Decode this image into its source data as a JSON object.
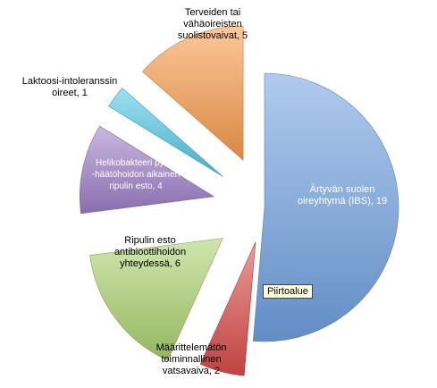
{
  "chart_data": {
    "type": "pie",
    "exploded": true,
    "slices": [
      {
        "label_lines": [
          "Ärtyvän suolen",
          "oireyhtymä (IBS), 19"
        ],
        "value": 19,
        "color": "#6fa0e0"
      },
      {
        "label_lines": [
          "Määrittelemätön",
          "toiminnallinen",
          "vatsavaiva, 2"
        ],
        "value": 2,
        "color": "#d94b49"
      },
      {
        "label_lines": [
          "Ripulin esto",
          "antibioottihoidon",
          "yhteydessä, 6"
        ],
        "value": 6,
        "color": "#a9d06c"
      },
      {
        "label_lines": [
          "Helikobakteeri pylori",
          "-häätöhoidon aikainen",
          "ripulin esto, 4"
        ],
        "value": 4,
        "color": "#9c7dc7"
      },
      {
        "label_lines": [
          "Laktoosi-intoleranssin",
          "oireet, 1"
        ],
        "value": 1,
        "color": "#4fc6e3"
      },
      {
        "label_lines": [
          "Terveiden tai",
          "vähäoireisten",
          "suolistovaivat, 5"
        ],
        "value": 5,
        "color": "#f79a4a"
      }
    ]
  },
  "tooltip": {
    "text": "Piirtoalue"
  }
}
